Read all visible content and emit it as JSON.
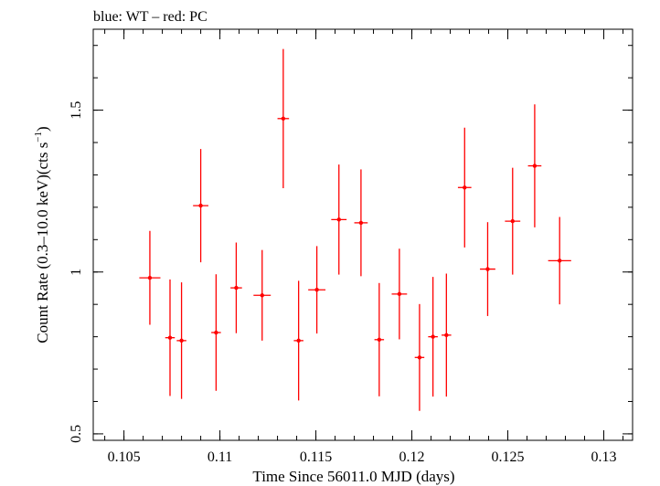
{
  "chart_data": {
    "type": "scatter",
    "title": "blue: WT – red: PC",
    "xlabel": "Time Since 56011.0 MJD (days)",
    "ylabel_main": "Count Rate (0.3–10.0 keV)(cts s",
    "ylabel_sup": "−1",
    "ylabel_close": ")",
    "xlim": [
      0.1034,
      0.1315
    ],
    "ylim": [
      0.48,
      1.75
    ],
    "x_ticks_major": [
      0.105,
      0.11,
      0.115,
      0.12,
      0.125,
      0.13
    ],
    "x_tick_labels": [
      "0.105",
      "0.11",
      "0.115",
      "0.12",
      "0.125",
      "0.13"
    ],
    "x_ticks_minor_step": 0.001,
    "y_ticks_major": [
      0.5,
      1,
      1.5
    ],
    "y_tick_labels": [
      "0.5",
      "1",
      "1.5"
    ],
    "y_ticks_minor_step": 0.1,
    "grid": false,
    "series": [
      {
        "color": "#ff0000",
        "points": [
          {
            "x": 0.10635,
            "xerr": 0.00055,
            "y": 0.982,
            "yerr": 0.145
          },
          {
            "x": 0.1074,
            "xerr": 0.00025,
            "y": 0.797,
            "yerr": 0.18
          },
          {
            "x": 0.108,
            "xerr": 0.00025,
            "y": 0.788,
            "yerr": 0.18
          },
          {
            "x": 0.109,
            "xerr": 0.0004,
            "y": 1.205,
            "yerr": 0.175
          },
          {
            "x": 0.1098,
            "xerr": 0.00025,
            "y": 0.813,
            "yerr": 0.18
          },
          {
            "x": 0.11085,
            "xerr": 0.0003,
            "y": 0.951,
            "yerr": 0.14
          },
          {
            "x": 0.1122,
            "xerr": 0.00045,
            "y": 0.928,
            "yerr": 0.14
          },
          {
            "x": 0.1133,
            "xerr": 0.0003,
            "y": 1.474,
            "yerr": 0.215
          },
          {
            "x": 0.1141,
            "xerr": 0.00025,
            "y": 0.788,
            "yerr": 0.185
          },
          {
            "x": 0.11505,
            "xerr": 0.00045,
            "y": 0.945,
            "yerr": 0.135
          },
          {
            "x": 0.1162,
            "xerr": 0.0004,
            "y": 1.162,
            "yerr": 0.17
          },
          {
            "x": 0.11735,
            "xerr": 0.00035,
            "y": 1.152,
            "yerr": 0.165
          },
          {
            "x": 0.1183,
            "xerr": 0.00025,
            "y": 0.791,
            "yerr": 0.175
          },
          {
            "x": 0.11935,
            "xerr": 0.0004,
            "y": 0.932,
            "yerr": 0.14
          },
          {
            "x": 0.1204,
            "xerr": 0.00025,
            "y": 0.736,
            "yerr": 0.165
          },
          {
            "x": 0.1211,
            "xerr": 0.00025,
            "y": 0.8,
            "yerr": 0.185
          },
          {
            "x": 0.1218,
            "xerr": 0.00025,
            "y": 0.805,
            "yerr": 0.19
          },
          {
            "x": 0.12275,
            "xerr": 0.00035,
            "y": 1.261,
            "yerr": 0.185
          },
          {
            "x": 0.12395,
            "xerr": 0.0004,
            "y": 1.009,
            "yerr": 0.145
          },
          {
            "x": 0.12525,
            "xerr": 0.0004,
            "y": 1.157,
            "yerr": 0.165
          },
          {
            "x": 0.1264,
            "xerr": 0.00035,
            "y": 1.328,
            "yerr": 0.19
          },
          {
            "x": 0.1277,
            "xerr": 0.0006,
            "y": 1.035,
            "yerr": 0.135
          }
        ]
      }
    ]
  }
}
